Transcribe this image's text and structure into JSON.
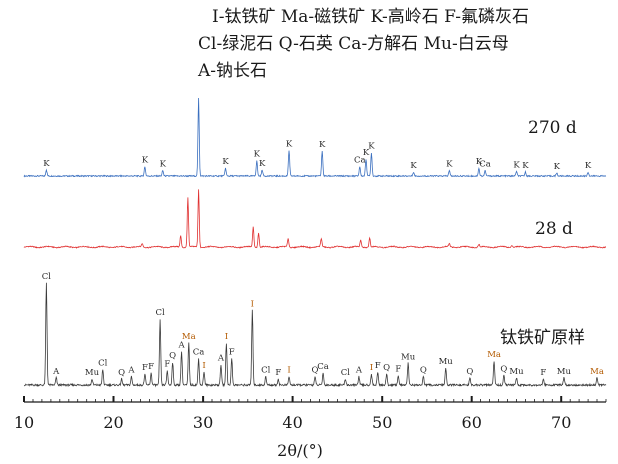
{
  "legend": [
    "I-钛铁矿 Ma-磁铁矿 K-高岭石 F-氟磷灰石",
    "Cl-绿泥石 Q-石英 Ca-方解石 Mu-白云母",
    "A-钠长石"
  ],
  "colors": {
    "270d": "#3a6fbf",
    "28d": "#e03030",
    "raw": "#3a3a3a"
  },
  "chart_data": {
    "type": "line",
    "xlabel": "2θ/(°)",
    "xlim": [
      10,
      75
    ],
    "xticks": [
      10,
      20,
      30,
      40,
      50,
      60,
      70
    ],
    "series": [
      {
        "name": "270 d",
        "peaks": [
          {
            "x": 12.5,
            "h": 0.08,
            "label": "K"
          },
          {
            "x": 23.5,
            "h": 0.12,
            "label": "K"
          },
          {
            "x": 25.5,
            "h": 0.07,
            "label": "K"
          },
          {
            "x": 29.5,
            "h": 1.0,
            "label": ""
          },
          {
            "x": 32.5,
            "h": 0.1,
            "label": "K"
          },
          {
            "x": 36.0,
            "h": 0.2,
            "label": "K"
          },
          {
            "x": 36.6,
            "h": 0.08,
            "label": "K"
          },
          {
            "x": 39.6,
            "h": 0.33,
            "label": "K"
          },
          {
            "x": 43.3,
            "h": 0.32,
            "label": "K"
          },
          {
            "x": 47.5,
            "h": 0.12,
            "label": "Ca"
          },
          {
            "x": 48.2,
            "h": 0.22,
            "label": "K"
          },
          {
            "x": 48.8,
            "h": 0.3,
            "label": "K"
          },
          {
            "x": 53.5,
            "h": 0.05,
            "label": "K"
          },
          {
            "x": 57.5,
            "h": 0.07,
            "label": "K"
          },
          {
            "x": 60.8,
            "h": 0.1,
            "label": "K"
          },
          {
            "x": 61.5,
            "h": 0.07,
            "label": "Ca"
          },
          {
            "x": 65.0,
            "h": 0.06,
            "label": "K"
          },
          {
            "x": 66.0,
            "h": 0.05,
            "label": "K"
          },
          {
            "x": 69.5,
            "h": 0.04,
            "label": "K"
          },
          {
            "x": 73.0,
            "h": 0.05,
            "label": "K"
          }
        ]
      },
      {
        "name": "28 d",
        "peaks": [
          {
            "x": 23.2,
            "h": 0.06,
            "label": ""
          },
          {
            "x": 27.5,
            "h": 0.2,
            "label": ""
          },
          {
            "x": 28.3,
            "h": 0.85,
            "label": ""
          },
          {
            "x": 29.5,
            "h": 1.0,
            "label": ""
          },
          {
            "x": 35.6,
            "h": 0.35,
            "label": ""
          },
          {
            "x": 36.2,
            "h": 0.25,
            "label": ""
          },
          {
            "x": 39.5,
            "h": 0.15,
            "label": ""
          },
          {
            "x": 43.2,
            "h": 0.14,
            "label": ""
          },
          {
            "x": 47.6,
            "h": 0.12,
            "label": ""
          },
          {
            "x": 48.6,
            "h": 0.16,
            "label": ""
          },
          {
            "x": 57.5,
            "h": 0.06,
            "label": ""
          },
          {
            "x": 60.8,
            "h": 0.05,
            "label": ""
          },
          {
            "x": 64.5,
            "h": 0.04,
            "label": ""
          }
        ]
      },
      {
        "name": "钛铁矿原样",
        "peaks": [
          {
            "x": 12.5,
            "h": 0.85,
            "label": "Cl"
          },
          {
            "x": 13.6,
            "h": 0.06,
            "label": "A"
          },
          {
            "x": 17.6,
            "h": 0.05,
            "label": "Mu"
          },
          {
            "x": 18.8,
            "h": 0.13,
            "label": "Cl"
          },
          {
            "x": 20.9,
            "h": 0.05,
            "label": "Q"
          },
          {
            "x": 22.0,
            "h": 0.07,
            "label": "A"
          },
          {
            "x": 23.5,
            "h": 0.09,
            "label": "F"
          },
          {
            "x": 24.2,
            "h": 0.1,
            "label": "F"
          },
          {
            "x": 25.2,
            "h": 0.55,
            "label": "Cl"
          },
          {
            "x": 26.0,
            "h": 0.12,
            "label": "F"
          },
          {
            "x": 26.6,
            "h": 0.19,
            "label": "Q"
          },
          {
            "x": 27.6,
            "h": 0.28,
            "label": "A"
          },
          {
            "x": 28.4,
            "h": 0.35,
            "label": "Ma"
          },
          {
            "x": 29.5,
            "h": 0.22,
            "label": "Ca"
          },
          {
            "x": 30.1,
            "h": 0.11,
            "label": "I"
          },
          {
            "x": 32.0,
            "h": 0.17,
            "label": "A"
          },
          {
            "x": 32.6,
            "h": 0.35,
            "label": "I"
          },
          {
            "x": 33.2,
            "h": 0.22,
            "label": "F"
          },
          {
            "x": 35.5,
            "h": 0.62,
            "label": "I"
          },
          {
            "x": 37.0,
            "h": 0.07,
            "label": "Cl"
          },
          {
            "x": 38.4,
            "h": 0.05,
            "label": "F"
          },
          {
            "x": 39.6,
            "h": 0.07,
            "label": "I"
          },
          {
            "x": 42.5,
            "h": 0.07,
            "label": "Q"
          },
          {
            "x": 43.4,
            "h": 0.1,
            "label": "Ca"
          },
          {
            "x": 45.9,
            "h": 0.05,
            "label": "Cl"
          },
          {
            "x": 47.4,
            "h": 0.07,
            "label": "A"
          },
          {
            "x": 48.8,
            "h": 0.09,
            "label": "I"
          },
          {
            "x": 49.5,
            "h": 0.11,
            "label": "F"
          },
          {
            "x": 50.5,
            "h": 0.09,
            "label": "Q"
          },
          {
            "x": 51.8,
            "h": 0.08,
            "label": "F"
          },
          {
            "x": 52.9,
            "h": 0.18,
            "label": "Mu"
          },
          {
            "x": 54.6,
            "h": 0.07,
            "label": "Q"
          },
          {
            "x": 57.1,
            "h": 0.14,
            "label": "Mu"
          },
          {
            "x": 59.8,
            "h": 0.06,
            "label": "Q"
          },
          {
            "x": 62.5,
            "h": 0.2,
            "label": "Ma"
          },
          {
            "x": 63.6,
            "h": 0.08,
            "label": "Q"
          },
          {
            "x": 65.0,
            "h": 0.06,
            "label": "Mu"
          },
          {
            "x": 68.0,
            "h": 0.05,
            "label": "F"
          },
          {
            "x": 70.3,
            "h": 0.06,
            "label": "Mu"
          },
          {
            "x": 74.0,
            "h": 0.06,
            "label": "Ma"
          }
        ]
      }
    ]
  }
}
